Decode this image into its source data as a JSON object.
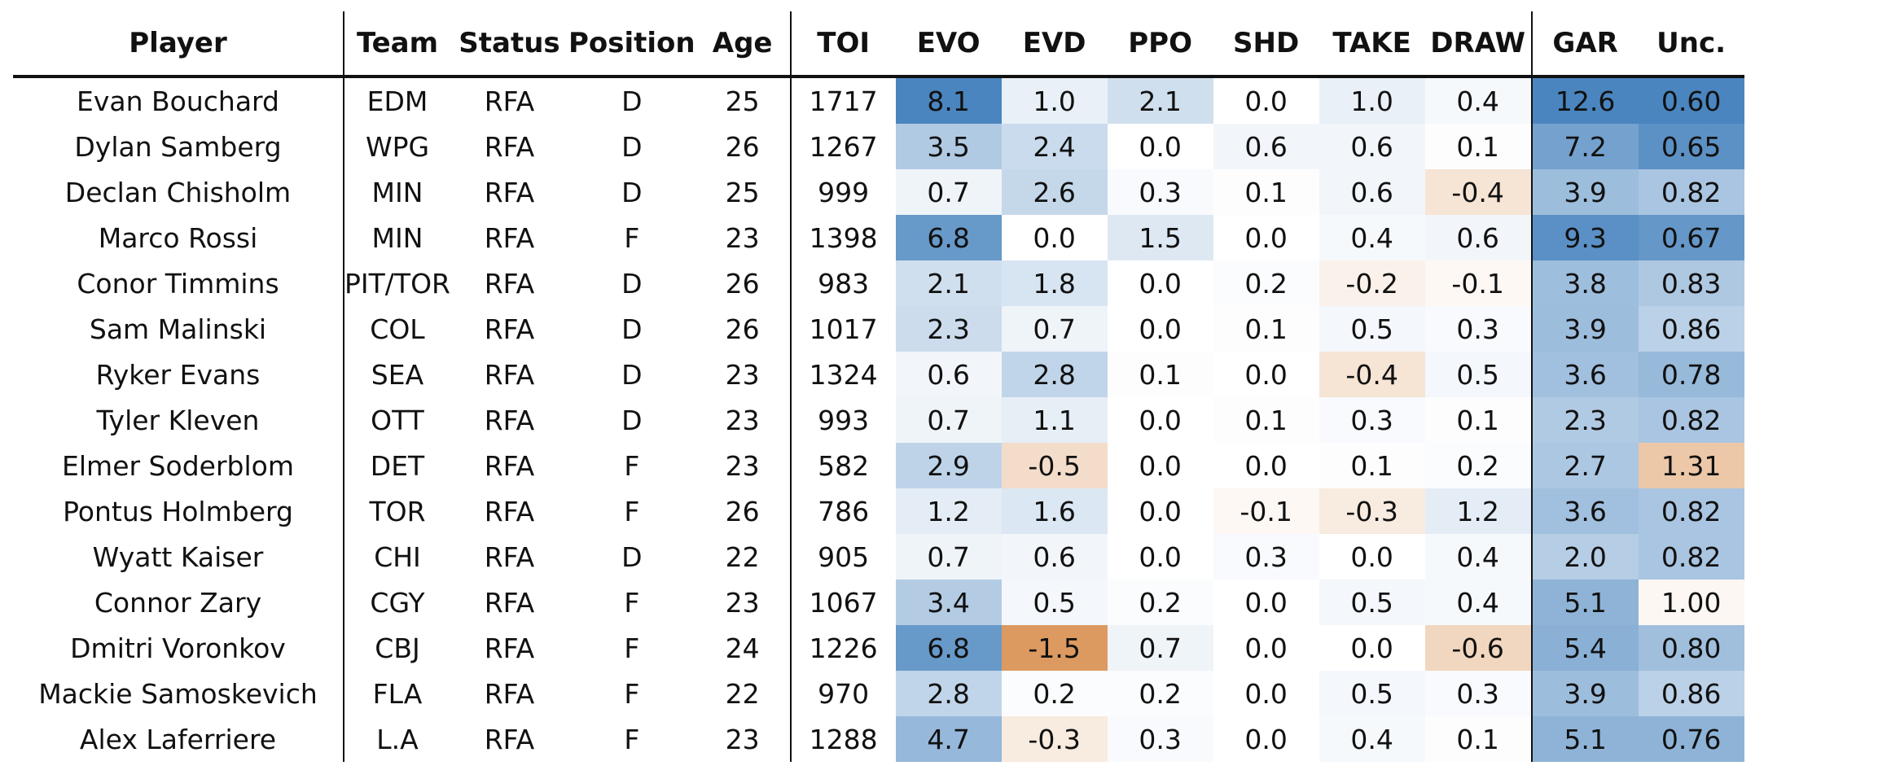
{
  "chart_data": {
    "type": "table",
    "columns": [
      {
        "key": "player",
        "label": "Player"
      },
      {
        "key": "team",
        "label": "Team"
      },
      {
        "key": "status",
        "label": "Status"
      },
      {
        "key": "position",
        "label": "Position"
      },
      {
        "key": "age",
        "label": "Age"
      },
      {
        "key": "toi",
        "label": "TOI"
      },
      {
        "key": "evo",
        "label": "EVO"
      },
      {
        "key": "evd",
        "label": "EVD"
      },
      {
        "key": "ppo",
        "label": "PPO"
      },
      {
        "key": "shd",
        "label": "SHD"
      },
      {
        "key": "take",
        "label": "TAKE"
      },
      {
        "key": "draw",
        "label": "DRAW"
      },
      {
        "key": "gar",
        "label": "GAR"
      },
      {
        "key": "unc",
        "label": "Unc."
      }
    ],
    "rows": [
      [
        "Evan Bouchard",
        "EDM",
        "RFA",
        "D",
        "25",
        "1717",
        "8.1",
        "1.0",
        "2.1",
        "0.0",
        "1.0",
        "0.4",
        "12.6",
        "0.60"
      ],
      [
        "Dylan Samberg",
        "WPG",
        "RFA",
        "D",
        "26",
        "1267",
        "3.5",
        "2.4",
        "0.0",
        "0.6",
        "0.6",
        "0.1",
        "7.2",
        "0.65"
      ],
      [
        "Declan Chisholm",
        "MIN",
        "RFA",
        "D",
        "25",
        "999",
        "0.7",
        "2.6",
        "0.3",
        "0.1",
        "0.6",
        "-0.4",
        "3.9",
        "0.82"
      ],
      [
        "Marco Rossi",
        "MIN",
        "RFA",
        "F",
        "23",
        "1398",
        "6.8",
        "0.0",
        "1.5",
        "0.0",
        "0.4",
        "0.6",
        "9.3",
        "0.67"
      ],
      [
        "Conor Timmins",
        "PIT/TOR",
        "RFA",
        "D",
        "26",
        "983",
        "2.1",
        "1.8",
        "0.0",
        "0.2",
        "-0.2",
        "-0.1",
        "3.8",
        "0.83"
      ],
      [
        "Sam Malinski",
        "COL",
        "RFA",
        "D",
        "26",
        "1017",
        "2.3",
        "0.7",
        "0.0",
        "0.1",
        "0.5",
        "0.3",
        "3.9",
        "0.86"
      ],
      [
        "Ryker Evans",
        "SEA",
        "RFA",
        "D",
        "23",
        "1324",
        "0.6",
        "2.8",
        "0.1",
        "0.0",
        "-0.4",
        "0.5",
        "3.6",
        "0.78"
      ],
      [
        "Tyler Kleven",
        "OTT",
        "RFA",
        "D",
        "23",
        "993",
        "0.7",
        "1.1",
        "0.0",
        "0.1",
        "0.3",
        "0.1",
        "2.3",
        "0.82"
      ],
      [
        "Elmer Soderblom",
        "DET",
        "RFA",
        "F",
        "23",
        "582",
        "2.9",
        "-0.5",
        "0.0",
        "0.0",
        "0.1",
        "0.2",
        "2.7",
        "1.31"
      ],
      [
        "Pontus Holmberg",
        "TOR",
        "RFA",
        "F",
        "26",
        "786",
        "1.2",
        "1.6",
        "0.0",
        "-0.1",
        "-0.3",
        "1.2",
        "3.6",
        "0.82"
      ],
      [
        "Wyatt Kaiser",
        "CHI",
        "RFA",
        "D",
        "22",
        "905",
        "0.7",
        "0.6",
        "0.0",
        "0.3",
        "0.0",
        "0.4",
        "2.0",
        "0.82"
      ],
      [
        "Connor Zary",
        "CGY",
        "RFA",
        "F",
        "23",
        "1067",
        "3.4",
        "0.5",
        "0.2",
        "0.0",
        "0.5",
        "0.4",
        "5.1",
        "1.00"
      ],
      [
        "Dmitri Voronkov",
        "CBJ",
        "RFA",
        "F",
        "24",
        "1226",
        "6.8",
        "-1.5",
        "0.7",
        "0.0",
        "0.0",
        "-0.6",
        "5.4",
        "0.80"
      ],
      [
        "Mackie Samoskevich",
        "FLA",
        "RFA",
        "F",
        "22",
        "970",
        "2.8",
        "0.2",
        "0.2",
        "0.0",
        "0.5",
        "0.3",
        "3.9",
        "0.86"
      ],
      [
        "Alex Laferriere",
        "L.A",
        "RFA",
        "F",
        "23",
        "1288",
        "4.7",
        "-0.3",
        "0.3",
        "0.0",
        "0.4",
        "0.1",
        "5.1",
        "0.76"
      ]
    ],
    "heatmap": {
      "positive_color": "#4a85bf",
      "negative_color": "#dc9a60",
      "neutral_color": "#ffffff",
      "scale_max_components": 8.1,
      "scale_max_gar": 12.6,
      "unc_center": 0.95,
      "unc_range": 0.4
    }
  }
}
